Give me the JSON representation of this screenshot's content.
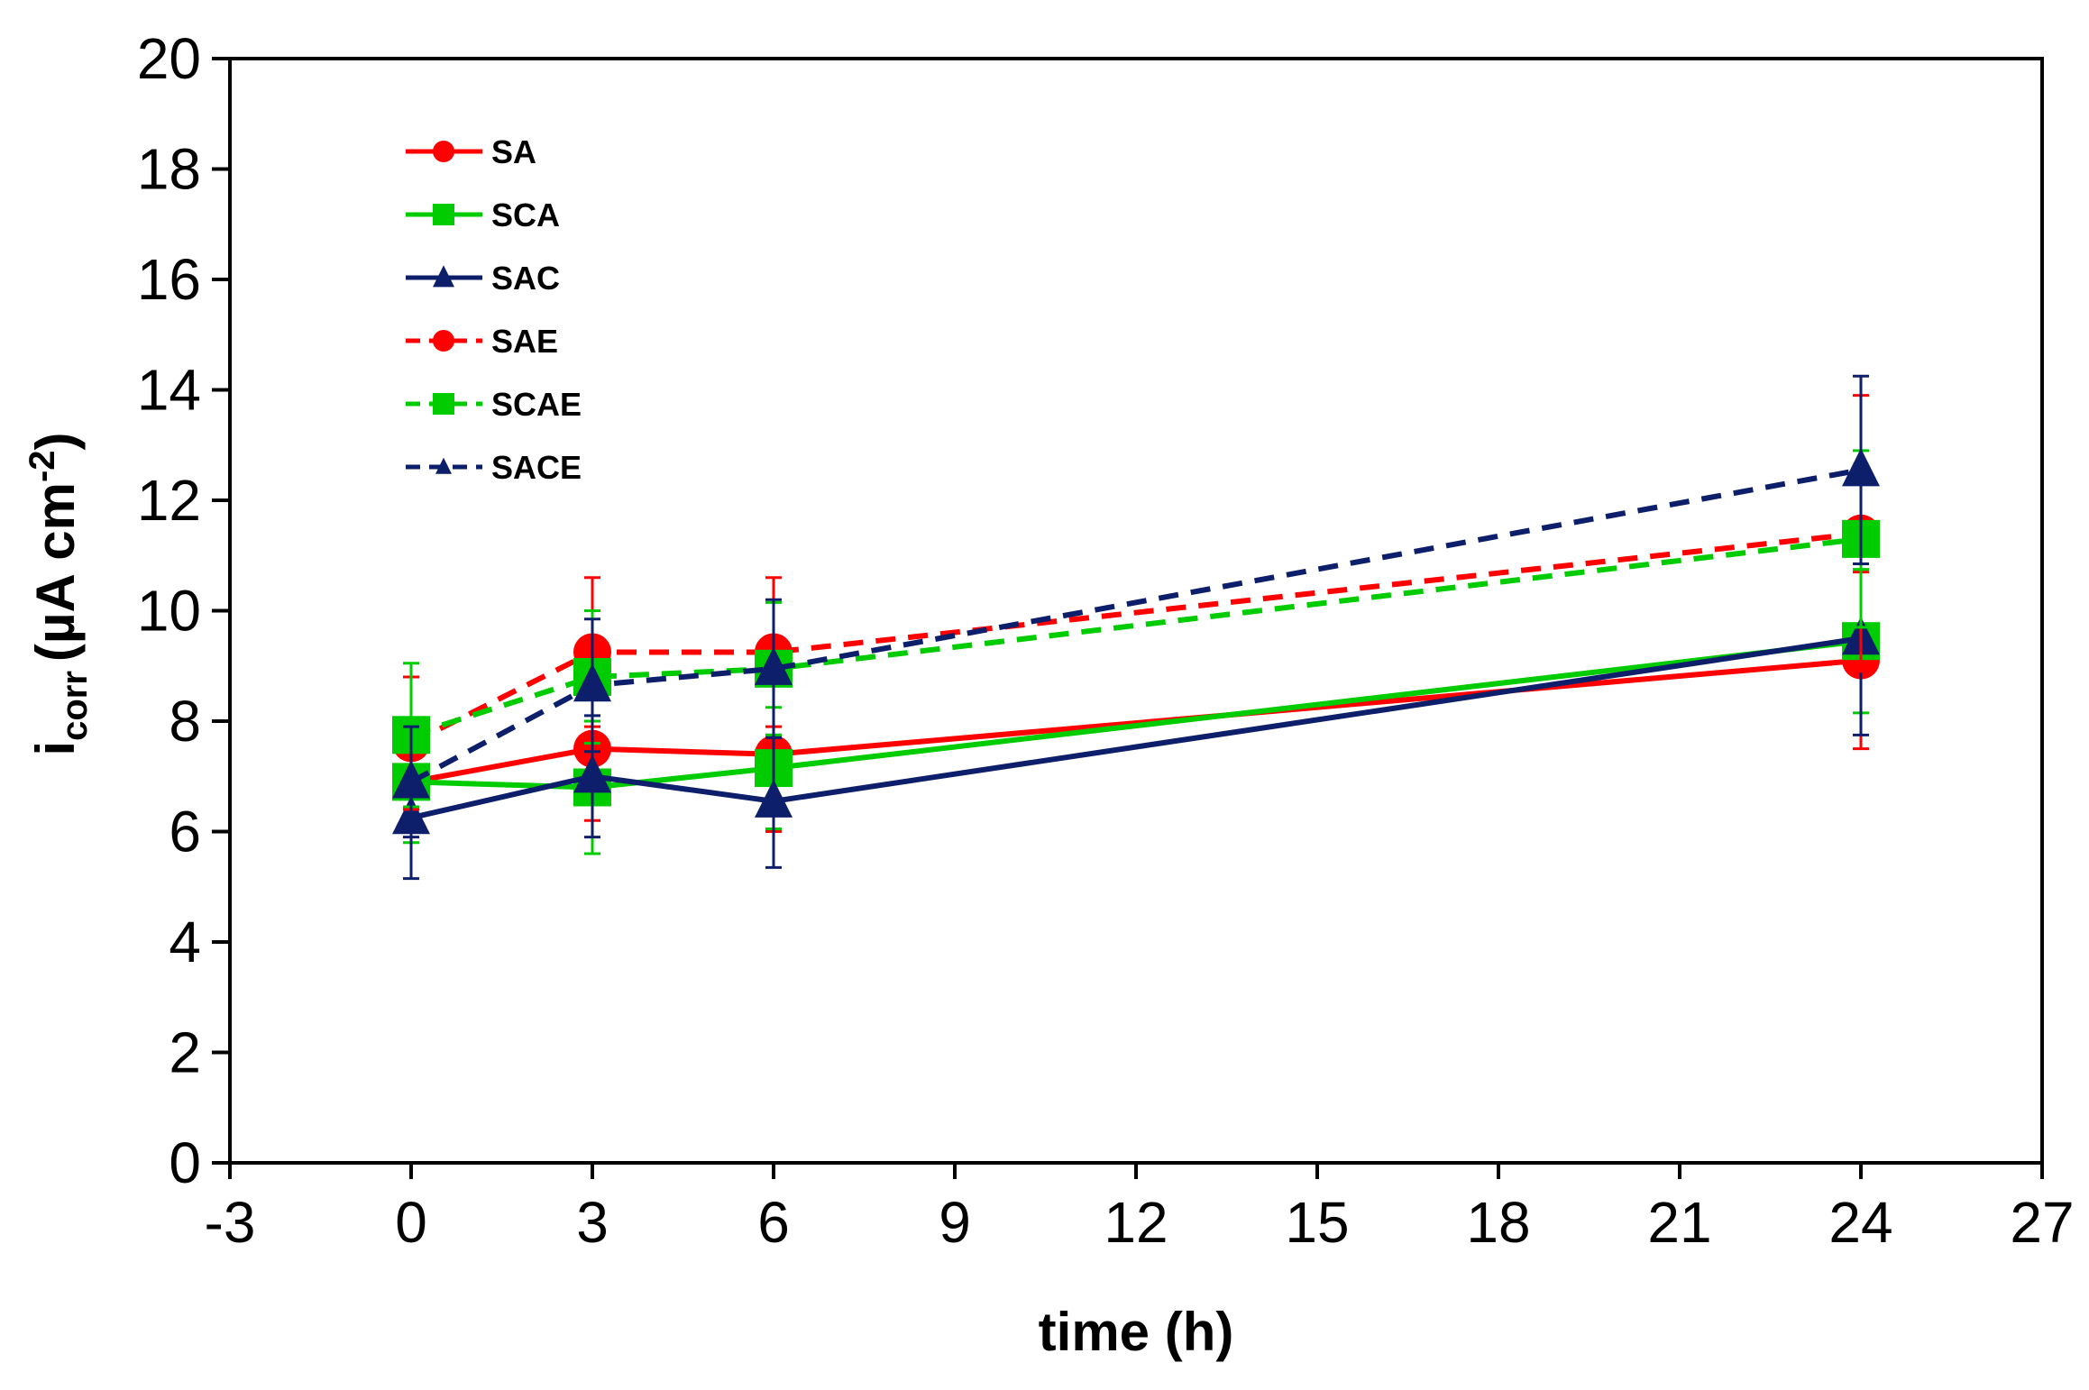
{
  "chart_data": {
    "type": "line",
    "title": "",
    "xlabel": "time (h)",
    "ylabel": {
      "main": "i",
      "sub": "corr",
      "unit": "(µA cm",
      "sup": "-2",
      "close": ")"
    },
    "xlim": [
      -3,
      27
    ],
    "ylim": [
      0,
      20
    ],
    "xticks": [
      -3,
      0,
      3,
      6,
      9,
      12,
      15,
      18,
      21,
      24,
      27
    ],
    "yticks": [
      0,
      2,
      4,
      6,
      8,
      10,
      12,
      14,
      16,
      18,
      20
    ],
    "grid": false,
    "legend_position": "top-left",
    "x": [
      0,
      3,
      6,
      24
    ],
    "series": [
      {
        "name": "SA",
        "color": "#ff0000",
        "dash": false,
        "marker": "circle",
        "values": [
          6.9,
          7.5,
          7.4,
          9.1
        ],
        "errors": [
          0.8,
          1.3,
          1.4,
          1.6
        ]
      },
      {
        "name": "SCA",
        "color": "#00cc00",
        "dash": false,
        "marker": "square",
        "values": [
          6.9,
          6.8,
          7.15,
          9.45
        ],
        "errors": [
          1.1,
          1.2,
          1.1,
          1.3
        ]
      },
      {
        "name": "SAC",
        "color": "#0d1f6b",
        "dash": false,
        "marker": "triangle",
        "values": [
          6.25,
          7.0,
          6.55,
          9.5
        ],
        "errors": [
          1.1,
          1.1,
          1.2,
          1.75
        ]
      },
      {
        "name": "SAE",
        "color": "#ff0000",
        "dash": true,
        "marker": "circle",
        "values": [
          7.6,
          9.25,
          9.25,
          11.4
        ],
        "errors": [
          1.2,
          1.35,
          1.35,
          2.5
        ]
      },
      {
        "name": "SCAE",
        "color": "#00cc00",
        "dash": true,
        "marker": "square",
        "values": [
          7.75,
          8.8,
          8.95,
          11.3
        ],
        "errors": [
          1.3,
          1.2,
          1.2,
          1.6
        ]
      },
      {
        "name": "SACE",
        "color": "#0d1f6b",
        "dash": true,
        "marker": "triangle",
        "values": [
          6.9,
          8.65,
          8.95,
          12.55
        ],
        "errors": [
          1.0,
          1.2,
          1.25,
          1.7
        ]
      }
    ]
  }
}
